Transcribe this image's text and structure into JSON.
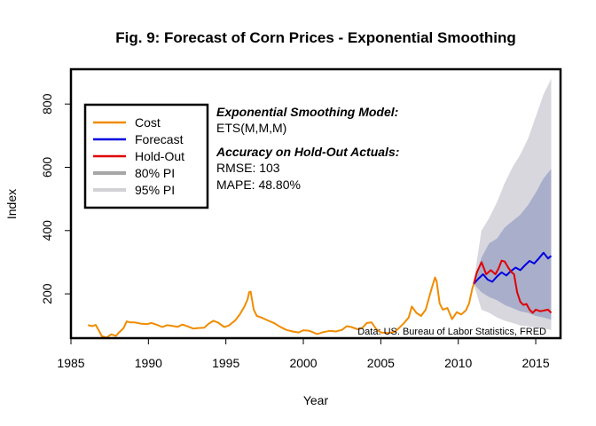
{
  "chart_data": {
    "type": "line",
    "title": "Fig. 9: Forecast of Corn Prices - Exponential Smoothing",
    "xlabel": "Year",
    "ylabel": "Index",
    "xlim": [
      1985.0,
      2016.6
    ],
    "ylim": [
      60,
      910
    ],
    "x_ticks": [
      1985,
      1990,
      1995,
      2000,
      2005,
      2010,
      2015
    ],
    "y_ticks": [
      200,
      400,
      600,
      800
    ],
    "grid": false,
    "legend_position": "top-left",
    "legend": [
      {
        "label": "Cost",
        "color": "#f08c00",
        "width": 2.5
      },
      {
        "label": "Forecast",
        "color": "#0000e0",
        "width": 2.5
      },
      {
        "label": "Hold-Out",
        "color": "#e00000",
        "width": 2.5
      },
      {
        "label": "80% PI",
        "color": "#a6a6a6",
        "width": 4
      },
      {
        "label": "95% PI",
        "color": "#d2d2d6",
        "width": 4
      }
    ],
    "annotations": {
      "model_heading": "Exponential Smoothing Model:",
      "model_name": "ETS(M,M,M)",
      "accuracy_heading": "Accuracy on Hold-Out Actuals:",
      "rmse": "RMSE: 103",
      "mape": "MAPE: 48.80%",
      "source": "Data: US. Bureau of Labor Statistics, FRED"
    },
    "colors": {
      "pi80": "#a9aecb",
      "pi95": "#d7d7dd"
    },
    "series": [
      {
        "name": "Cost",
        "points": [
          [
            1986.1,
            101
          ],
          [
            1986.4,
            98
          ],
          [
            1986.6,
            102
          ],
          [
            1986.8,
            84
          ],
          [
            1987.0,
            66
          ],
          [
            1987.3,
            62
          ],
          [
            1987.6,
            72
          ],
          [
            1987.9,
            67
          ],
          [
            1988.1,
            78
          ],
          [
            1988.4,
            92
          ],
          [
            1988.6,
            113
          ],
          [
            1988.8,
            110
          ],
          [
            1989.1,
            110
          ],
          [
            1989.5,
            106
          ],
          [
            1989.9,
            104
          ],
          [
            1990.2,
            108
          ],
          [
            1990.5,
            103
          ],
          [
            1990.9,
            95
          ],
          [
            1991.2,
            101
          ],
          [
            1991.5,
            99
          ],
          [
            1991.9,
            96
          ],
          [
            1992.2,
            103
          ],
          [
            1992.6,
            96
          ],
          [
            1992.9,
            90
          ],
          [
            1993.2,
            92
          ],
          [
            1993.6,
            93
          ],
          [
            1993.9,
            106
          ],
          [
            1994.2,
            115
          ],
          [
            1994.5,
            109
          ],
          [
            1994.9,
            95
          ],
          [
            1995.2,
            100
          ],
          [
            1995.6,
            116
          ],
          [
            1995.9,
            135
          ],
          [
            1996.2,
            160
          ],
          [
            1996.4,
            182
          ],
          [
            1996.5,
            205
          ],
          [
            1996.6,
            207
          ],
          [
            1996.8,
            150
          ],
          [
            1997.0,
            130
          ],
          [
            1997.3,
            125
          ],
          [
            1997.7,
            116
          ],
          [
            1998.1,
            108
          ],
          [
            1998.5,
            96
          ],
          [
            1998.9,
            86
          ],
          [
            1999.3,
            81
          ],
          [
            1999.7,
            78
          ],
          [
            2000.0,
            85
          ],
          [
            2000.4,
            83
          ],
          [
            2000.9,
            73
          ],
          [
            2001.3,
            79
          ],
          [
            2001.7,
            83
          ],
          [
            2002.1,
            81
          ],
          [
            2002.5,
            86
          ],
          [
            2002.8,
            98
          ],
          [
            2003.1,
            95
          ],
          [
            2003.5,
            88
          ],
          [
            2003.8,
            92
          ],
          [
            2004.1,
            108
          ],
          [
            2004.4,
            110
          ],
          [
            2004.7,
            89
          ],
          [
            2005.0,
            78
          ],
          [
            2005.5,
            76
          ],
          [
            2005.9,
            80
          ],
          [
            2006.2,
            93
          ],
          [
            2006.5,
            108
          ],
          [
            2006.8,
            125
          ],
          [
            2007.0,
            160
          ],
          [
            2007.3,
            140
          ],
          [
            2007.6,
            130
          ],
          [
            2007.9,
            150
          ],
          [
            2008.1,
            185
          ],
          [
            2008.3,
            220
          ],
          [
            2008.5,
            252
          ],
          [
            2008.6,
            240
          ],
          [
            2008.8,
            170
          ],
          [
            2009.0,
            150
          ],
          [
            2009.3,
            155
          ],
          [
            2009.6,
            120
          ],
          [
            2009.9,
            142
          ],
          [
            2010.2,
            135
          ],
          [
            2010.5,
            148
          ],
          [
            2010.7,
            170
          ],
          [
            2010.9,
            215
          ],
          [
            2011.0,
            232
          ]
        ]
      },
      {
        "name": "Forecast",
        "points": [
          [
            2011.0,
            232
          ],
          [
            2011.3,
            248
          ],
          [
            2011.6,
            262
          ],
          [
            2011.9,
            245
          ],
          [
            2012.2,
            238
          ],
          [
            2012.5,
            255
          ],
          [
            2012.8,
            268
          ],
          [
            2013.1,
            258
          ],
          [
            2013.4,
            272
          ],
          [
            2013.7,
            283
          ],
          [
            2014.0,
            275
          ],
          [
            2014.3,
            290
          ],
          [
            2014.6,
            304
          ],
          [
            2014.9,
            296
          ],
          [
            2015.2,
            312
          ],
          [
            2015.5,
            330
          ],
          [
            2015.8,
            312
          ],
          [
            2016.0,
            320
          ]
        ]
      },
      {
        "name": "Hold-Out",
        "points": [
          [
            2011.0,
            232
          ],
          [
            2011.2,
            268
          ],
          [
            2011.5,
            300
          ],
          [
            2011.8,
            262
          ],
          [
            2012.1,
            275
          ],
          [
            2012.4,
            262
          ],
          [
            2012.6,
            280
          ],
          [
            2012.8,
            305
          ],
          [
            2013.0,
            302
          ],
          [
            2013.2,
            285
          ],
          [
            2013.4,
            270
          ],
          [
            2013.6,
            262
          ],
          [
            2013.8,
            205
          ],
          [
            2014.0,
            175
          ],
          [
            2014.2,
            165
          ],
          [
            2014.4,
            168
          ],
          [
            2014.6,
            150
          ],
          [
            2014.8,
            140
          ],
          [
            2015.0,
            150
          ],
          [
            2015.3,
            145
          ],
          [
            2015.6,
            148
          ],
          [
            2015.8,
            150
          ],
          [
            2016.0,
            140
          ]
        ]
      }
    ],
    "bands": {
      "x": [
        2011.0,
        2011.5,
        2012.0,
        2012.5,
        2013.0,
        2013.5,
        2014.0,
        2014.5,
        2015.0,
        2015.5,
        2016.0
      ],
      "pi80_upper": [
        235,
        315,
        360,
        375,
        410,
        430,
        450,
        480,
        520,
        565,
        595
      ],
      "pi80_lower": [
        232,
        205,
        190,
        180,
        165,
        155,
        145,
        140,
        130,
        125,
        118
      ],
      "pi95_upper": [
        240,
        400,
        440,
        490,
        550,
        600,
        640,
        690,
        760,
        830,
        880
      ],
      "pi95_lower": [
        230,
        150,
        140,
        125,
        115,
        108,
        100,
        97,
        93,
        90,
        86
      ]
    }
  }
}
